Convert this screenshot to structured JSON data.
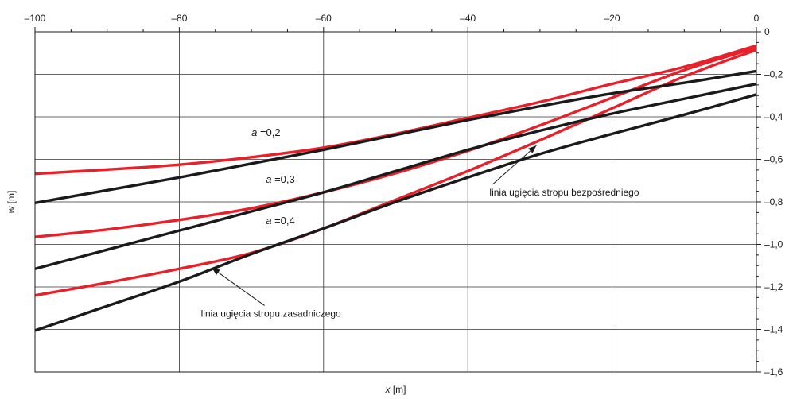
{
  "chart_data": {
    "type": "line",
    "xlabel_var": "x",
    "xlabel_unit": " [m]",
    "ylabel_var": "w",
    "ylabel_unit": " [m]",
    "xlim": [
      -100,
      0
    ],
    "ylim": [
      -1.6,
      0
    ],
    "xticks": [
      -100,
      -80,
      -60,
      -40,
      -20,
      0
    ],
    "xtick_labels": [
      "–100",
      "–80",
      "–60",
      "–40",
      "–20",
      "0"
    ],
    "yticks": [
      0,
      -0.2,
      -0.4,
      -0.6,
      -0.8,
      -1.0,
      -1.2,
      -1.4,
      -1.6
    ],
    "ytick_labels": [
      "0",
      "–0,2",
      "–0,4",
      "–0,6",
      "–0,8",
      "–1,0",
      "–1,2",
      "–1,4",
      "–1,6"
    ],
    "grid": true,
    "x_axis_position": "top",
    "y_axis_position": "right",
    "colors": {
      "red": "#e8202a",
      "black": "#1a1a1a"
    },
    "series": [
      {
        "color": "red",
        "points": [
          [
            -100,
            -0.668
          ],
          [
            -90,
            -0.648
          ],
          [
            -80,
            -0.625
          ],
          [
            -70,
            -0.59
          ],
          [
            -60,
            -0.545
          ],
          [
            -50,
            -0.48
          ],
          [
            -40,
            -0.405
          ],
          [
            -30,
            -0.33
          ],
          [
            -20,
            -0.245
          ],
          [
            -10,
            -0.165
          ],
          [
            0,
            -0.065
          ]
        ]
      },
      {
        "color": "red",
        "points": [
          [
            -100,
            -0.965
          ],
          [
            -90,
            -0.93
          ],
          [
            -80,
            -0.885
          ],
          [
            -70,
            -0.83
          ],
          [
            -60,
            -0.755
          ],
          [
            -50,
            -0.665
          ],
          [
            -40,
            -0.56
          ],
          [
            -30,
            -0.44
          ],
          [
            -20,
            -0.31
          ],
          [
            -10,
            -0.18
          ],
          [
            0,
            -0.075
          ]
        ]
      },
      {
        "color": "red",
        "points": [
          [
            -100,
            -1.24
          ],
          [
            -90,
            -1.18
          ],
          [
            -80,
            -1.115
          ],
          [
            -70,
            -1.04
          ],
          [
            -60,
            -0.925
          ],
          [
            -50,
            -0.79
          ],
          [
            -40,
            -0.655
          ],
          [
            -30,
            -0.51
          ],
          [
            -20,
            -0.36
          ],
          [
            -10,
            -0.21
          ],
          [
            0,
            -0.085
          ]
        ]
      },
      {
        "color": "black",
        "points": [
          [
            -100,
            -0.805
          ],
          [
            -90,
            -0.745
          ],
          [
            -80,
            -0.685
          ],
          [
            -70,
            -0.62
          ],
          [
            -60,
            -0.555
          ],
          [
            -50,
            -0.485
          ],
          [
            -40,
            -0.415
          ],
          [
            -30,
            -0.35
          ],
          [
            -20,
            -0.29
          ],
          [
            -10,
            -0.24
          ],
          [
            0,
            -0.185
          ]
        ]
      },
      {
        "color": "black",
        "points": [
          [
            -100,
            -1.115
          ],
          [
            -90,
            -1.025
          ],
          [
            -80,
            -0.935
          ],
          [
            -70,
            -0.845
          ],
          [
            -60,
            -0.755
          ],
          [
            -50,
            -0.655
          ],
          [
            -40,
            -0.555
          ],
          [
            -30,
            -0.465
          ],
          [
            -20,
            -0.385
          ],
          [
            -10,
            -0.315
          ],
          [
            0,
            -0.245
          ]
        ]
      },
      {
        "color": "black",
        "points": [
          [
            -100,
            -1.405
          ],
          [
            -90,
            -1.29
          ],
          [
            -80,
            -1.175
          ],
          [
            -70,
            -1.045
          ],
          [
            -60,
            -0.925
          ],
          [
            -50,
            -0.8
          ],
          [
            -40,
            -0.685
          ],
          [
            -30,
            -0.575
          ],
          [
            -20,
            -0.48
          ],
          [
            -10,
            -0.39
          ],
          [
            0,
            -0.295
          ]
        ]
      }
    ],
    "annotations": [
      {
        "var": "a",
        "text": " =0,2",
        "x": -70,
        "y": -0.49
      },
      {
        "var": "a",
        "text": " =0,3",
        "x": -68,
        "y": -0.71
      },
      {
        "var": "a",
        "text": " =0,4",
        "x": -68,
        "y": -0.905
      },
      {
        "text": "linia ugięcia stropu bezpośredniego",
        "x": -37,
        "y": -0.77,
        "arrow_to": [
          -30.5,
          -0.535
        ]
      },
      {
        "text": "linia ugięcia stropu zasadniczego",
        "x": -77,
        "y": -1.34,
        "arrow_to": [
          -75.5,
          -1.11
        ]
      }
    ]
  }
}
